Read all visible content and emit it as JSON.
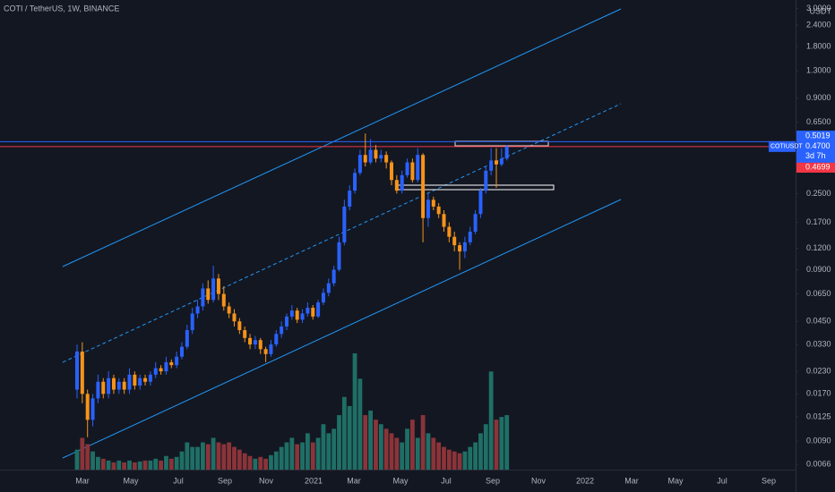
{
  "chart_data": {
    "type": "candlestick",
    "title": "COTI / TetherUS, 1W, BINANCE",
    "symbol": "COTIUSDT",
    "currency": "USDT",
    "countdown": "3d 7h",
    "log_scale": true,
    "ylim": [
      0.00615,
      3.36
    ],
    "yticks": [
      {
        "value": 3,
        "label": "3.0000"
      },
      {
        "value": 2.4,
        "label": "2.4000"
      },
      {
        "value": 1.8,
        "label": "1.8000"
      },
      {
        "value": 1.3,
        "label": "1.3000"
      },
      {
        "value": 0.9,
        "label": "0.9000"
      },
      {
        "value": 0.65,
        "label": "0.6500"
      },
      {
        "value": 0.25,
        "label": "0.2500"
      },
      {
        "value": 0.17,
        "label": "0.1700"
      },
      {
        "value": 0.12,
        "label": "0.1200"
      },
      {
        "value": 0.09,
        "label": "0.0900"
      },
      {
        "value": 0.065,
        "label": "0.0650"
      },
      {
        "value": 0.045,
        "label": "0.0450"
      },
      {
        "value": 0.033,
        "label": "0.0330"
      },
      {
        "value": 0.023,
        "label": "0.0230"
      },
      {
        "value": 0.017,
        "label": "0.0170"
      },
      {
        "value": 0.0125,
        "label": "0.0125"
      },
      {
        "value": 0.009,
        "label": "0.0090"
      },
      {
        "value": 0.0066,
        "label": "0.0066"
      }
    ],
    "xticks": [
      "Mar",
      "May",
      "Jul",
      "Sep",
      "Nov",
      "2021",
      "Mar",
      "May",
      "Jul",
      "Sep",
      "Nov",
      "2022",
      "Mar",
      "May",
      "Jul",
      "Sep"
    ],
    "up_color": "#2962ff",
    "down_color": "#f7931a",
    "volume_up_color": "#1f6f66",
    "volume_down_color": "#8a3439",
    "open": [
      0.018,
      0.03,
      0.017,
      0.012,
      0.016,
      0.02,
      0.017,
      0.021,
      0.018,
      0.02,
      0.018,
      0.022,
      0.019,
      0.021,
      0.02,
      0.022,
      0.024,
      0.023,
      0.026,
      0.025,
      0.028,
      0.032,
      0.04,
      0.05,
      0.055,
      0.07,
      0.06,
      0.08,
      0.065,
      0.055,
      0.05,
      0.045,
      0.04,
      0.036,
      0.033,
      0.035,
      0.031,
      0.029,
      0.033,
      0.038,
      0.042,
      0.048,
      0.052,
      0.046,
      0.05,
      0.054,
      0.048,
      0.058,
      0.066,
      0.075,
      0.09,
      0.13,
      0.21,
      0.26,
      0.33,
      0.42,
      0.38,
      0.45,
      0.4,
      0.42,
      0.38,
      0.3,
      0.26,
      0.32,
      0.38,
      0.3,
      0.42,
      0.18,
      0.23,
      0.21,
      0.19,
      0.16,
      0.14,
      0.125,
      0.115,
      0.13,
      0.15,
      0.19,
      0.26,
      0.34,
      0.39,
      0.37,
      0.4
    ],
    "high": [
      0.033,
      0.034,
      0.018,
      0.017,
      0.022,
      0.021,
      0.023,
      0.022,
      0.021,
      0.021,
      0.024,
      0.023,
      0.022,
      0.022,
      0.023,
      0.026,
      0.025,
      0.028,
      0.027,
      0.03,
      0.034,
      0.043,
      0.054,
      0.06,
      0.075,
      0.078,
      0.095,
      0.085,
      0.072,
      0.058,
      0.053,
      0.047,
      0.042,
      0.038,
      0.037,
      0.036,
      0.032,
      0.035,
      0.04,
      0.045,
      0.05,
      0.056,
      0.054,
      0.053,
      0.058,
      0.056,
      0.06,
      0.07,
      0.08,
      0.095,
      0.14,
      0.23,
      0.28,
      0.35,
      0.45,
      0.56,
      0.52,
      0.48,
      0.45,
      0.44,
      0.39,
      0.32,
      0.34,
      0.4,
      0.4,
      0.46,
      0.43,
      0.25,
      0.24,
      0.22,
      0.2,
      0.17,
      0.15,
      0.13,
      0.14,
      0.16,
      0.2,
      0.27,
      0.36,
      0.46,
      0.46,
      0.46,
      0.48
    ],
    "low": [
      0.016,
      0.015,
      0.0095,
      0.011,
      0.015,
      0.016,
      0.016,
      0.017,
      0.017,
      0.017,
      0.017,
      0.018,
      0.018,
      0.019,
      0.019,
      0.021,
      0.022,
      0.022,
      0.024,
      0.024,
      0.027,
      0.031,
      0.038,
      0.047,
      0.052,
      0.057,
      0.058,
      0.06,
      0.052,
      0.047,
      0.042,
      0.038,
      0.034,
      0.031,
      0.031,
      0.029,
      0.026,
      0.028,
      0.032,
      0.036,
      0.04,
      0.046,
      0.044,
      0.044,
      0.048,
      0.046,
      0.047,
      0.056,
      0.063,
      0.072,
      0.088,
      0.125,
      0.2,
      0.25,
      0.32,
      0.36,
      0.37,
      0.38,
      0.38,
      0.35,
      0.28,
      0.25,
      0.25,
      0.31,
      0.29,
      0.29,
      0.13,
      0.16,
      0.2,
      0.18,
      0.15,
      0.13,
      0.115,
      0.09,
      0.105,
      0.125,
      0.145,
      0.18,
      0.25,
      0.32,
      0.27,
      0.36,
      0.39
    ],
    "close": [
      0.03,
      0.017,
      0.012,
      0.016,
      0.02,
      0.017,
      0.021,
      0.018,
      0.02,
      0.018,
      0.022,
      0.019,
      0.021,
      0.02,
      0.022,
      0.024,
      0.023,
      0.026,
      0.025,
      0.028,
      0.032,
      0.04,
      0.05,
      0.055,
      0.07,
      0.06,
      0.08,
      0.065,
      0.055,
      0.05,
      0.045,
      0.04,
      0.036,
      0.033,
      0.035,
      0.031,
      0.029,
      0.033,
      0.038,
      0.042,
      0.048,
      0.052,
      0.046,
      0.05,
      0.054,
      0.048,
      0.058,
      0.066,
      0.075,
      0.09,
      0.13,
      0.21,
      0.26,
      0.33,
      0.42,
      0.38,
      0.45,
      0.4,
      0.42,
      0.38,
      0.3,
      0.26,
      0.32,
      0.38,
      0.3,
      0.42,
      0.18,
      0.23,
      0.21,
      0.19,
      0.16,
      0.14,
      0.125,
      0.115,
      0.13,
      0.15,
      0.19,
      0.26,
      0.34,
      0.39,
      0.37,
      0.4,
      0.47
    ],
    "volume": [
      22,
      35,
      28,
      20,
      14,
      12,
      10,
      8,
      10,
      8,
      10,
      8,
      9,
      10,
      10,
      12,
      10,
      15,
      12,
      14,
      20,
      30,
      25,
      25,
      30,
      28,
      35,
      30,
      28,
      30,
      25,
      22,
      18,
      15,
      12,
      14,
      12,
      16,
      20,
      25,
      30,
      35,
      28,
      30,
      40,
      30,
      35,
      50,
      40,
      45,
      60,
      80,
      70,
      128,
      100,
      60,
      65,
      55,
      50,
      45,
      40,
      35,
      30,
      45,
      55,
      35,
      60,
      40,
      35,
      30,
      25,
      22,
      20,
      18,
      20,
      25,
      30,
      40,
      50,
      108,
      55,
      58,
      60
    ],
    "price_lines": [
      {
        "value": 0.5019,
        "label": "0.5019",
        "color": "#2962ff"
      },
      {
        "value": 0.4699,
        "label": "0.4699",
        "color": "#f23645"
      }
    ],
    "last_price": {
      "value": 0.47,
      "label": "0.4700"
    }
  }
}
